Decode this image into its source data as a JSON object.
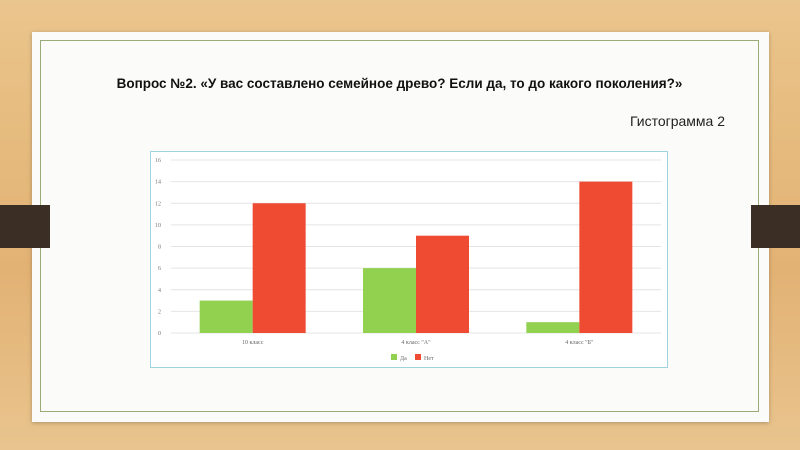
{
  "slide": {
    "title": "Вопрос №2. «У вас составлено семейное древо? Если да, то до какого поколения?»",
    "subtitle": "Гистограмма 2"
  },
  "chart_data": {
    "type": "bar",
    "categories": [
      "10 класс",
      "4 класс \"А\"",
      "4 класс \"Б\""
    ],
    "series": [
      {
        "name": "Да",
        "values": [
          3,
          6,
          1
        ],
        "color": "#92d050"
      },
      {
        "name": "Нет",
        "values": [
          12,
          9,
          14
        ],
        "color": "#ef4b33"
      }
    ],
    "ylim": [
      0,
      16
    ],
    "yticks": [
      0,
      2,
      4,
      6,
      8,
      10,
      12,
      14,
      16
    ],
    "grid": true,
    "legend": "bottom",
    "title": "",
    "xlabel": "",
    "ylabel": ""
  }
}
